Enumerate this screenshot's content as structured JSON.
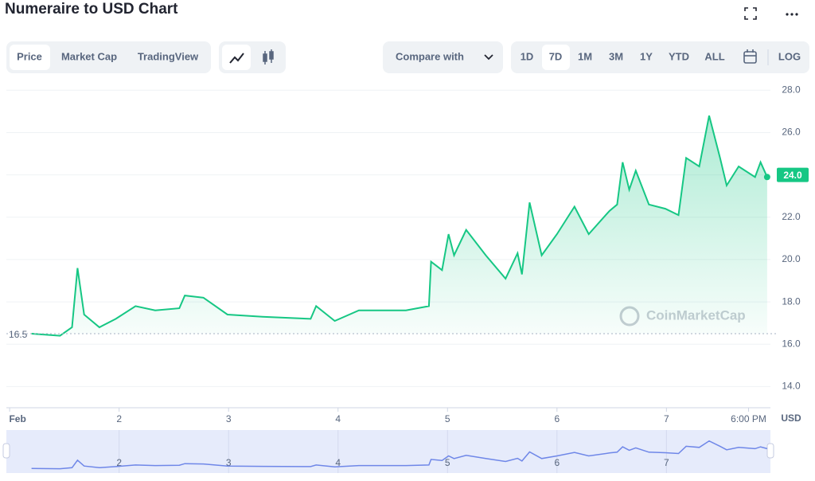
{
  "header": {
    "title": "Numeraire to USD Chart"
  },
  "toolbar": {
    "views": [
      "Price",
      "Market Cap",
      "TradingView"
    ],
    "compare": "Compare with",
    "ranges": [
      "1D",
      "7D",
      "1M",
      "3M",
      "1Y",
      "YTD",
      "ALL"
    ],
    "log": "LOG"
  },
  "chart_data": {
    "type": "line",
    "watermark": "CoinMarketCap",
    "y_unit_label": "USD",
    "x": [
      0.2,
      0.46,
      0.57,
      0.62,
      0.68,
      0.82,
      0.97,
      1.15,
      1.33,
      1.55,
      1.6,
      1.77,
      1.99,
      2.31,
      2.75,
      2.8,
      2.97,
      3.19,
      3.62,
      3.83,
      3.85,
      3.95,
      4.01,
      4.06,
      4.17,
      4.35,
      4.53,
      4.64,
      4.68,
      4.75,
      4.86,
      5.0,
      5.16,
      5.29,
      5.48,
      5.55,
      5.6,
      5.66,
      5.72,
      5.84,
      5.99,
      6.11,
      6.18,
      6.3,
      6.39,
      6.49,
      6.55,
      6.66,
      6.81,
      6.86,
      6.92
    ],
    "series": [
      {
        "name": "Price",
        "color": "#16c784",
        "values": [
          16.5,
          16.4,
          16.8,
          19.6,
          17.4,
          16.8,
          17.2,
          17.8,
          17.6,
          17.7,
          18.3,
          18.2,
          17.4,
          17.3,
          17.2,
          17.8,
          17.1,
          17.6,
          17.6,
          17.8,
          19.9,
          19.5,
          21.2,
          20.2,
          21.4,
          20.2,
          19.1,
          20.3,
          19.3,
          22.7,
          20.2,
          21.2,
          22.5,
          21.2,
          22.3,
          22.6,
          24.6,
          23.3,
          24.2,
          22.6,
          22.4,
          22.1,
          24.8,
          24.4,
          26.8,
          24.8,
          23.5,
          24.4,
          23.9,
          24.6,
          23.9
        ]
      }
    ],
    "xlim": [
      -0.03,
      6.95
    ],
    "xticks": [
      {
        "value": 0,
        "label": "Feb"
      },
      {
        "value": 1,
        "label": "2"
      },
      {
        "value": 2,
        "label": "3"
      },
      {
        "value": 3,
        "label": "4"
      },
      {
        "value": 4,
        "label": "5"
      },
      {
        "value": 5,
        "label": "6"
      },
      {
        "value": 6,
        "label": "7"
      },
      {
        "value": 6.75,
        "label": "6:00 PM"
      }
    ],
    "ylim": [
      13,
      28.5
    ],
    "yticks": [
      {
        "value": 14,
        "label": "14.0"
      },
      {
        "value": 16,
        "label": "16.0"
      },
      {
        "value": 18,
        "label": "18.0"
      },
      {
        "value": 20,
        "label": "20.0"
      },
      {
        "value": 22,
        "label": "22.0"
      },
      {
        "value": 24,
        "label": "24.0"
      },
      {
        "value": 26,
        "label": "26.0"
      },
      {
        "value": 28,
        "label": "28.0"
      }
    ],
    "grid": true,
    "open_line": {
      "value": 16.5,
      "label": "16.5"
    },
    "last_price": {
      "value": 24.0,
      "label": "24.0"
    }
  }
}
